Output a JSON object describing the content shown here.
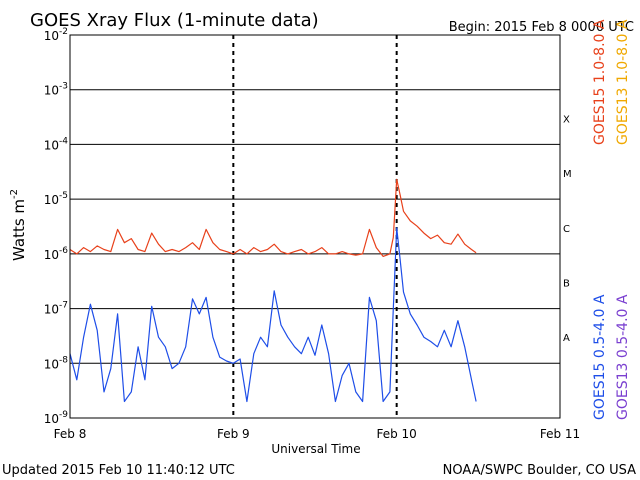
{
  "chart_data": {
    "type": "line",
    "title": "GOES Xray Flux (1-minute data)",
    "begin_label": "Begin:  2015 Feb 8 0000 UTC",
    "xlabel": "Universal Time",
    "ylabel_base": "Watts m",
    "ylabel_exp": "-2",
    "ylog": true,
    "ylim": [
      1e-09,
      0.01
    ],
    "xlim": [
      "2015-02-08T00:00",
      "2015-02-11T00:00"
    ],
    "x_ticks": [
      {
        "label": "Feb 8",
        "t": "2015-02-08T00:00"
      },
      {
        "label": "Feb 9",
        "t": "2015-02-09T00:00"
      },
      {
        "label": "Feb 10",
        "t": "2015-02-10T00:00"
      },
      {
        "label": "Feb 11",
        "t": "2015-02-11T00:00"
      }
    ],
    "y_ticks": [
      {
        "base": "10",
        "exp": "-9",
        "value": 1e-09
      },
      {
        "base": "10",
        "exp": "-8",
        "value": 1e-08
      },
      {
        "base": "10",
        "exp": "-7",
        "value": 1e-07
      },
      {
        "base": "10",
        "exp": "-6",
        "value": 1e-06
      },
      {
        "base": "10",
        "exp": "-5",
        "value": 1e-05
      },
      {
        "base": "10",
        "exp": "-4",
        "value": 0.0001
      },
      {
        "base": "10",
        "exp": "-3",
        "value": 0.001
      },
      {
        "base": "10",
        "exp": "-2",
        "value": 0.01
      }
    ],
    "flare_classes": [
      {
        "label": "A",
        "value": 3e-08
      },
      {
        "label": "B",
        "value": 3e-07
      },
      {
        "label": "C",
        "value": 3e-06
      },
      {
        "label": "M",
        "value": 3e-05
      },
      {
        "label": "X",
        "value": 0.0003
      }
    ],
    "grid": true,
    "legend_position": "right, rotated",
    "legend": [
      {
        "name": "GOES15 1.0-8.0 A",
        "color": "#e8411b"
      },
      {
        "name": "GOES13 1.0-8.0 A",
        "color": "#f0a800"
      },
      {
        "name": "GOES15 0.5-4.0 A",
        "color": "#1e4ee8"
      },
      {
        "name": "GOES13 0.5-4.0 A",
        "color": "#7a3fd0"
      }
    ],
    "series": [
      {
        "name": "GOES15 1.0-8.0 A",
        "color": "#e8411b",
        "x": [
          "2015-02-08T00:00",
          "2015-02-08T01:00",
          "2015-02-08T02:00",
          "2015-02-08T03:00",
          "2015-02-08T04:00",
          "2015-02-08T05:00",
          "2015-02-08T06:00",
          "2015-02-08T07:00",
          "2015-02-08T08:00",
          "2015-02-08T09:00",
          "2015-02-08T10:00",
          "2015-02-08T11:00",
          "2015-02-08T12:00",
          "2015-02-08T13:00",
          "2015-02-08T14:00",
          "2015-02-08T15:00",
          "2015-02-08T16:00",
          "2015-02-08T17:00",
          "2015-02-08T18:00",
          "2015-02-08T19:00",
          "2015-02-08T20:00",
          "2015-02-08T21:00",
          "2015-02-08T22:00",
          "2015-02-08T23:00",
          "2015-02-09T00:00",
          "2015-02-09T01:00",
          "2015-02-09T02:00",
          "2015-02-09T03:00",
          "2015-02-09T04:00",
          "2015-02-09T05:00",
          "2015-02-09T06:00",
          "2015-02-09T07:00",
          "2015-02-09T08:00",
          "2015-02-09T09:00",
          "2015-02-09T10:00",
          "2015-02-09T11:00",
          "2015-02-09T12:00",
          "2015-02-09T13:00",
          "2015-02-09T14:00",
          "2015-02-09T15:00",
          "2015-02-09T16:00",
          "2015-02-09T17:00",
          "2015-02-09T18:00",
          "2015-02-09T19:00",
          "2015-02-09T20:00",
          "2015-02-09T21:00",
          "2015-02-09T22:00",
          "2015-02-09T23:00",
          "2015-02-09T23:30",
          "2015-02-10T00:00",
          "2015-02-10T00:30",
          "2015-02-10T01:00",
          "2015-02-10T02:00",
          "2015-02-10T03:00",
          "2015-02-10T04:00",
          "2015-02-10T05:00",
          "2015-02-10T06:00",
          "2015-02-10T07:00",
          "2015-02-10T08:00",
          "2015-02-10T09:00",
          "2015-02-10T10:00",
          "2015-02-10T11:00",
          "2015-02-10T11:40"
        ],
        "values": [
          1.2e-06,
          1e-06,
          1.3e-06,
          1.1e-06,
          1.4e-06,
          1.2e-06,
          1.1e-06,
          2.8e-06,
          1.6e-06,
          1.9e-06,
          1.2e-06,
          1.1e-06,
          2.4e-06,
          1.5e-06,
          1.1e-06,
          1.2e-06,
          1.1e-06,
          1.3e-06,
          1.6e-06,
          1.2e-06,
          2.8e-06,
          1.6e-06,
          1.2e-06,
          1.1e-06,
          1e-06,
          1.2e-06,
          1e-06,
          1.3e-06,
          1.1e-06,
          1.2e-06,
          1.5e-06,
          1.1e-06,
          1e-06,
          1.1e-06,
          1.2e-06,
          1e-06,
          1.1e-06,
          1.3e-06,
          1e-06,
          1e-06,
          1.1e-06,
          1e-06,
          9.5e-07,
          1e-06,
          2.8e-06,
          1.3e-06,
          9e-07,
          1e-06,
          2e-06,
          2.3e-05,
          1.2e-05,
          6e-06,
          4e-06,
          3.2e-06,
          2.4e-06,
          1.9e-06,
          2.2e-06,
          1.6e-06,
          1.5e-06,
          2.3e-06,
          1.5e-06,
          1.2e-06,
          1.05e-06
        ]
      },
      {
        "name": "GOES15 0.5-4.0 A",
        "color": "#1e4ee8",
        "x": [
          "2015-02-08T00:00",
          "2015-02-08T01:00",
          "2015-02-08T02:00",
          "2015-02-08T03:00",
          "2015-02-08T04:00",
          "2015-02-08T05:00",
          "2015-02-08T06:00",
          "2015-02-08T07:00",
          "2015-02-08T08:00",
          "2015-02-08T09:00",
          "2015-02-08T10:00",
          "2015-02-08T11:00",
          "2015-02-08T12:00",
          "2015-02-08T13:00",
          "2015-02-08T14:00",
          "2015-02-08T15:00",
          "2015-02-08T16:00",
          "2015-02-08T17:00",
          "2015-02-08T18:00",
          "2015-02-08T19:00",
          "2015-02-08T20:00",
          "2015-02-08T21:00",
          "2015-02-08T22:00",
          "2015-02-08T23:00",
          "2015-02-09T00:00",
          "2015-02-09T01:00",
          "2015-02-09T02:00",
          "2015-02-09T03:00",
          "2015-02-09T04:00",
          "2015-02-09T05:00",
          "2015-02-09T06:00",
          "2015-02-09T07:00",
          "2015-02-09T08:00",
          "2015-02-09T09:00",
          "2015-02-09T10:00",
          "2015-02-09T11:00",
          "2015-02-09T12:00",
          "2015-02-09T13:00",
          "2015-02-09T14:00",
          "2015-02-09T15:00",
          "2015-02-09T16:00",
          "2015-02-09T17:00",
          "2015-02-09T18:00",
          "2015-02-09T19:00",
          "2015-02-09T20:00",
          "2015-02-09T21:00",
          "2015-02-09T22:00",
          "2015-02-09T23:00",
          "2015-02-09T23:30",
          "2015-02-10T00:00",
          "2015-02-10T00:30",
          "2015-02-10T01:00",
          "2015-02-10T02:00",
          "2015-02-10T03:00",
          "2015-02-10T04:00",
          "2015-02-10T05:00",
          "2015-02-10T06:00",
          "2015-02-10T07:00",
          "2015-02-10T08:00",
          "2015-02-10T09:00",
          "2015-02-10T10:00",
          "2015-02-10T11:00",
          "2015-02-10T11:40"
        ],
        "values": [
          1.5e-08,
          5e-09,
          3e-08,
          1.2e-07,
          4e-08,
          3e-09,
          8e-09,
          8e-08,
          2e-09,
          3e-09,
          2e-08,
          5e-09,
          1.1e-07,
          3e-08,
          2e-08,
          8e-09,
          1e-08,
          2e-08,
          1.5e-07,
          8e-08,
          1.6e-07,
          3e-08,
          1.3e-08,
          1.1e-08,
          1e-08,
          1.2e-08,
          2e-09,
          1.5e-08,
          3e-08,
          2e-08,
          2.1e-07,
          5e-08,
          3e-08,
          2e-08,
          1.5e-08,
          3e-08,
          1.4e-08,
          5e-08,
          1.5e-08,
          2e-09,
          6e-09,
          1e-08,
          3e-09,
          2e-09,
          1.6e-07,
          6e-08,
          2e-09,
          3e-09,
          1e-07,
          3e-06,
          8e-07,
          2e-07,
          8e-08,
          5e-08,
          3e-08,
          2.5e-08,
          2e-08,
          4e-08,
          2e-08,
          6e-08,
          2e-08,
          5e-09,
          2e-09
        ]
      }
    ]
  },
  "updated_label": "Updated 2015 Feb 10 11:40:12 UTC",
  "credit_label": "NOAA/SWPC Boulder, CO USA"
}
